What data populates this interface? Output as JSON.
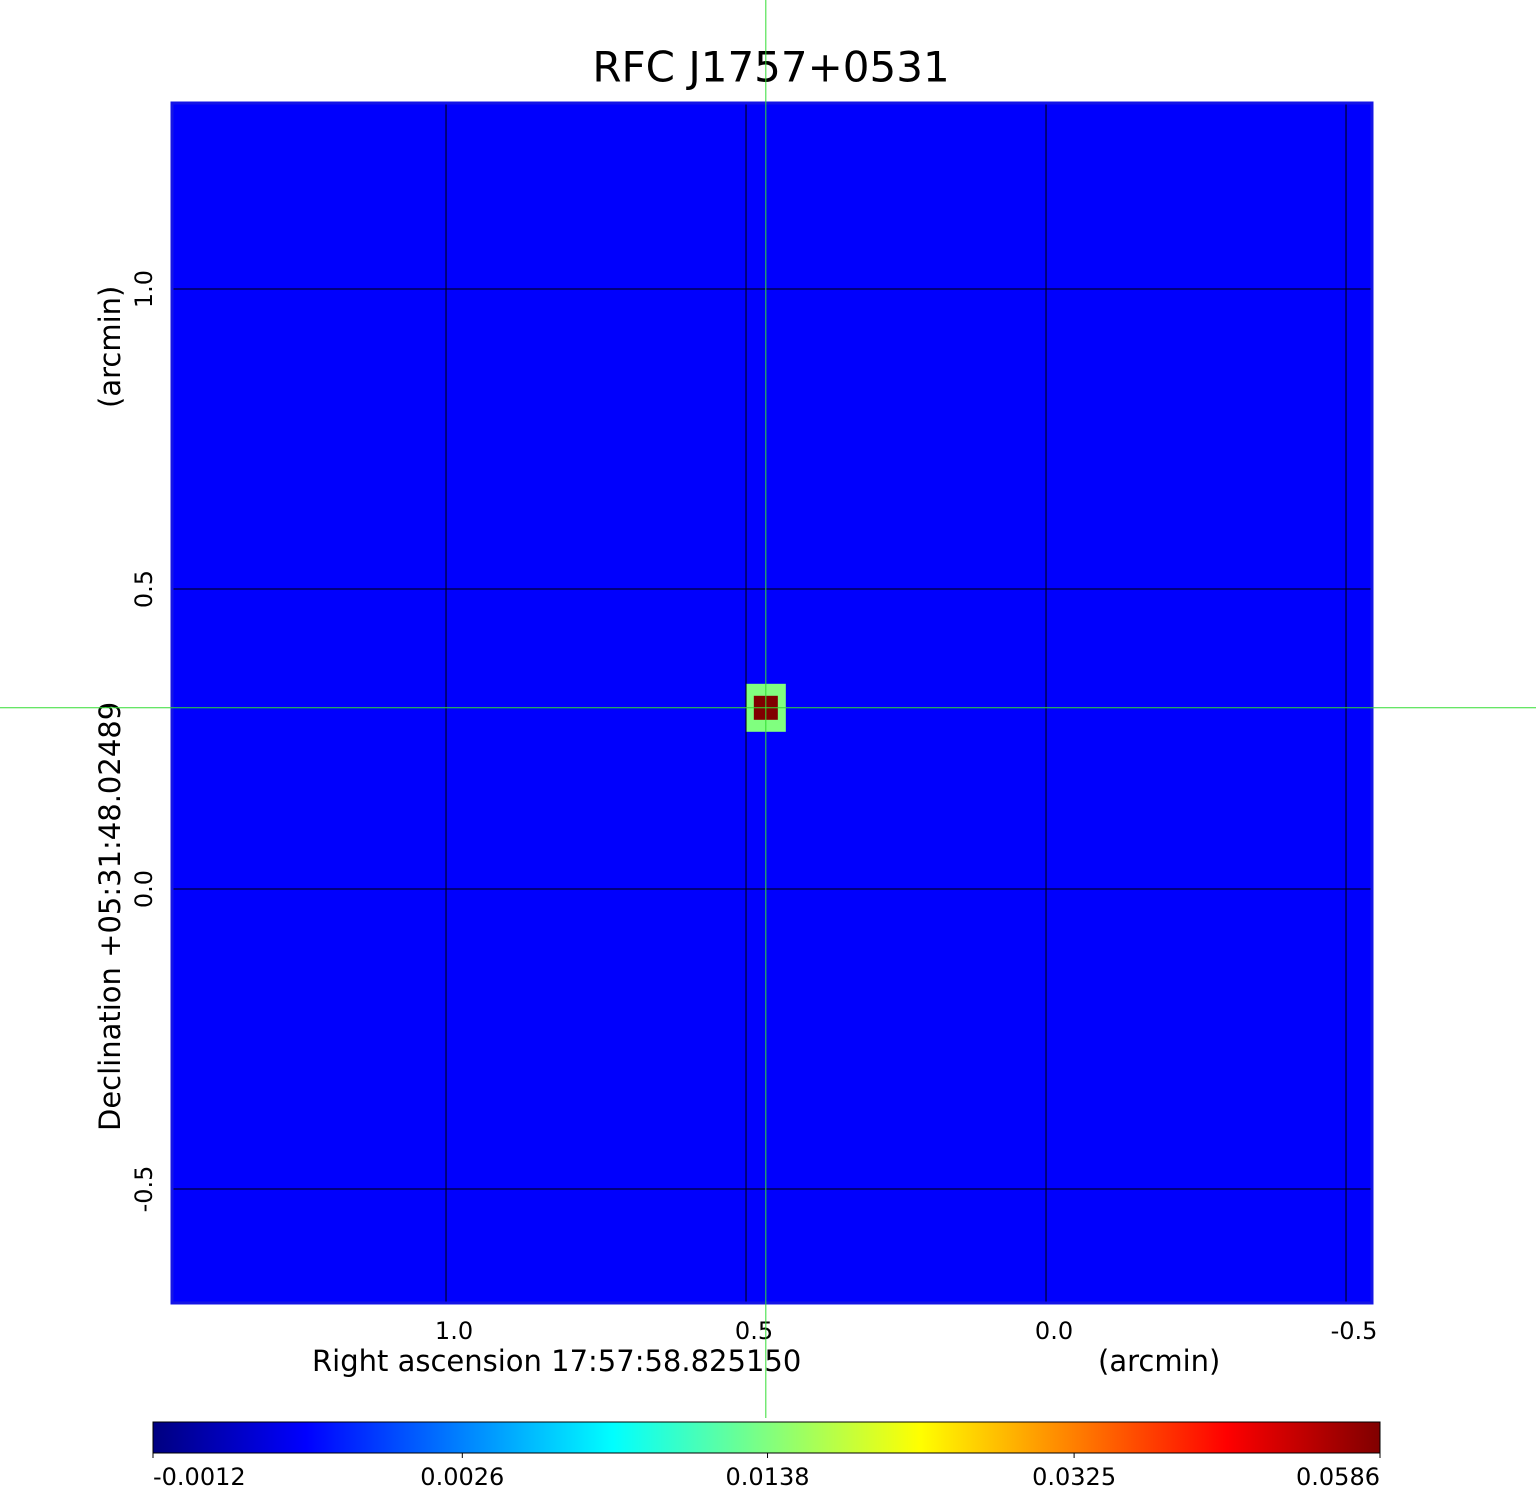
{
  "chart_data": {
    "type": "image",
    "title": "RFC J1757+0531",
    "title_color": "#1a1ad6",
    "xlabel": "Right ascension  17:57:58.825150",
    "xunit": "(arcmin)",
    "ylabel": "Declination  +05:31:48.02489",
    "yunit": "(arcmin)",
    "xlim": [
      1.4567,
      -0.5433
    ],
    "ylim": [
      -0.69,
      1.31
    ],
    "xticks": [
      {
        "value": 1,
        "label": "1.0"
      },
      0.5,
      {
        "value": 0,
        "label": "0.0"
      },
      -0.5
    ],
    "yticks": [
      {
        "value": 1,
        "label": "1.0"
      },
      0.5,
      {
        "value": 0,
        "label": "0.0"
      },
      -0.5
    ],
    "grid": true,
    "grid_color": "#000000",
    "frame_color": "#1414e6",
    "crosshair_color": "#33dd33",
    "background": -0.0003,
    "source": {
      "x": 0.467,
      "y": 0.302,
      "peak": 0.0586,
      "halo": 0.0138
    },
    "colorbar": {
      "lim": [
        -0.0012,
        0.0586
      ],
      "scale": "sqrt",
      "ticks": [
        -0.0012,
        0.0026,
        0.0138,
        0.0325,
        0.0586
      ]
    }
  }
}
